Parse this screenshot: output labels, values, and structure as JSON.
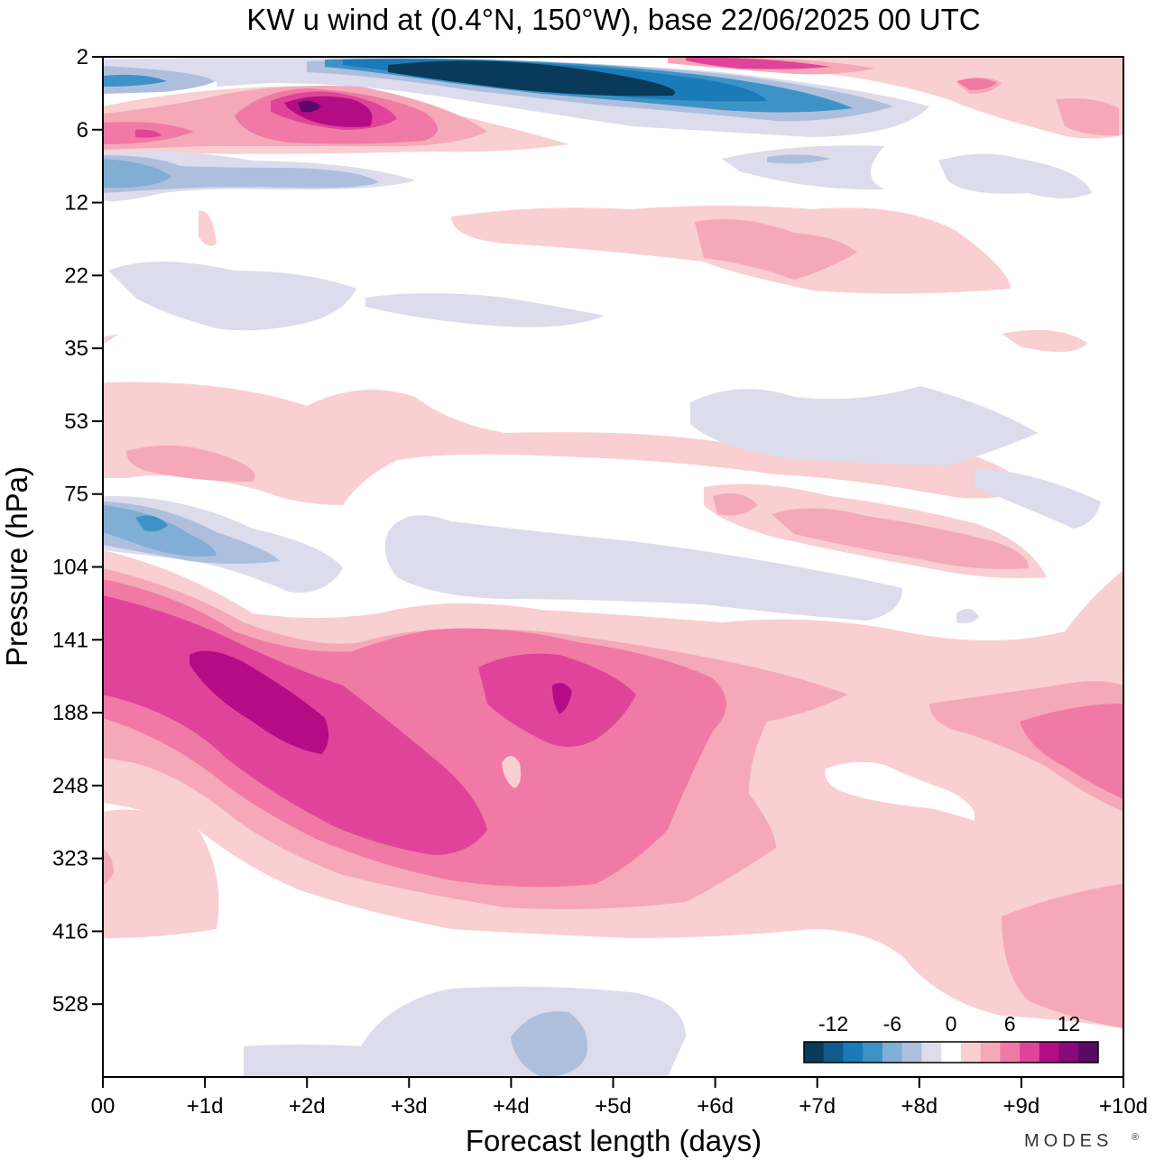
{
  "chart_data": {
    "type": "heatmap",
    "title": "KW u wind at (0.4°N, 150°W),  base 22/06/2025  00 UTC",
    "xlabel": "Forecast length (days)",
    "ylabel": "Pressure (hPa)",
    "x_ticks": [
      "00",
      "+1d",
      "+2d",
      "+3d",
      "+4d",
      "+5d",
      "+6d",
      "+7d",
      "+8d",
      "+9d",
      "+10d"
    ],
    "xlim": [
      0,
      10
    ],
    "y_ticks": [
      "2",
      "6",
      "12",
      "22",
      "35",
      "53",
      "75",
      "104",
      "141",
      "188",
      "248",
      "323",
      "416",
      "528"
    ],
    "y_scale": "categorical-log",
    "colorbar": {
      "labels": [
        "-12",
        "-6",
        "0",
        "6",
        "12"
      ],
      "levels": [
        -15,
        -12.5,
        -10,
        -7.5,
        -5,
        -2.5,
        -1,
        1,
        2.5,
        5,
        7.5,
        10,
        12.5,
        15
      ],
      "colors": [
        "#0a3a5a",
        "#0f5c8c",
        "#1b7bb8",
        "#3e93c6",
        "#80aed4",
        "#aebfde",
        "#dcdcec",
        "#ffffff",
        "#f9cfd1",
        "#f5a9b8",
        "#f07aa5",
        "#e0449a",
        "#b40c84",
        "#880a7c",
        "#5a0a66"
      ]
    },
    "features": [
      {
        "kind": "easterly",
        "x": [
          0,
          0.7
        ],
        "p": [
          3,
          3.5
        ],
        "peak": -5
      },
      {
        "kind": "easterly",
        "x": [
          2.5,
          6.0
        ],
        "p": [
          2.4,
          3.8
        ],
        "peak": -15
      },
      {
        "kind": "easterly",
        "x": [
          0,
          8.0
        ],
        "p": [
          3.5,
          5
        ],
        "peak": -7
      },
      {
        "kind": "westerly",
        "x": [
          1.3,
          3.5
        ],
        "p": [
          4,
          6.5
        ],
        "peak": 14
      },
      {
        "kind": "westerly",
        "x": [
          0,
          0.9
        ],
        "p": [
          5,
          7
        ],
        "peak": 5
      },
      {
        "kind": "westerly",
        "x": [
          5.5,
          8.0
        ],
        "p": [
          2,
          3
        ],
        "peak": 10
      },
      {
        "kind": "westerly",
        "x": [
          8.0,
          10
        ],
        "p": [
          3,
          6.5
        ],
        "peak": 5
      },
      {
        "kind": "easterly",
        "x": [
          0,
          2.8
        ],
        "p": [
          8,
          10
        ],
        "peak": -5
      },
      {
        "kind": "easterly",
        "x": [
          6.0,
          9.5
        ],
        "p": [
          7.5,
          10
        ],
        "peak": -2
      },
      {
        "kind": "westerly",
        "x": [
          3.5,
          9.5
        ],
        "p": [
          11,
          18
        ],
        "peak": 3
      },
      {
        "kind": "easterly",
        "x": [
          0.3,
          4.9
        ],
        "p": [
          19,
          30
        ],
        "peak": -2
      },
      {
        "kind": "westerly",
        "x": [
          0,
          9.5
        ],
        "p": [
          38,
          78
        ],
        "peak": 3
      },
      {
        "kind": "easterly",
        "x": [
          5.8,
          9.2
        ],
        "p": [
          42,
          60
        ],
        "peak": -2
      },
      {
        "kind": "easterly",
        "x": [
          0,
          2.4
        ],
        "p": [
          65,
          95
        ],
        "peak": -6
      },
      {
        "kind": "easterly",
        "x": [
          2.8,
          7.8
        ],
        "p": [
          72,
          120
        ],
        "peak": -2
      },
      {
        "kind": "westerly",
        "x": [
          6.0,
          9.0
        ],
        "p": [
          72,
          95
        ],
        "peak": 5
      },
      {
        "kind": "westerly",
        "x": [
          0,
          10
        ],
        "p": [
          95,
          330
        ],
        "peak": 10
      },
      {
        "kind": "westerly",
        "x": [
          1.0,
          2.0
        ],
        "p": [
          130,
          190
        ],
        "peak": 10
      },
      {
        "kind": "westerly",
        "x": [
          3.7,
          5.2
        ],
        "p": [
          130,
          185
        ],
        "peak": 10
      },
      {
        "kind": "westerly",
        "x": [
          8.5,
          10
        ],
        "p": [
          160,
          240
        ],
        "peak": 7
      },
      {
        "kind": "westerly",
        "x": [
          0,
          1.2
        ],
        "p": [
          240,
          360
        ],
        "peak": 3
      },
      {
        "kind": "westerly",
        "x": [
          8.0,
          10
        ],
        "p": [
          250,
          470
        ],
        "peak": 5
      },
      {
        "kind": "easterly",
        "x": [
          1.4,
          5.5
        ],
        "p": [
          440,
          560
        ],
        "peak": -4
      }
    ]
  },
  "logo": {
    "text": "MODES",
    "mark": "®"
  }
}
